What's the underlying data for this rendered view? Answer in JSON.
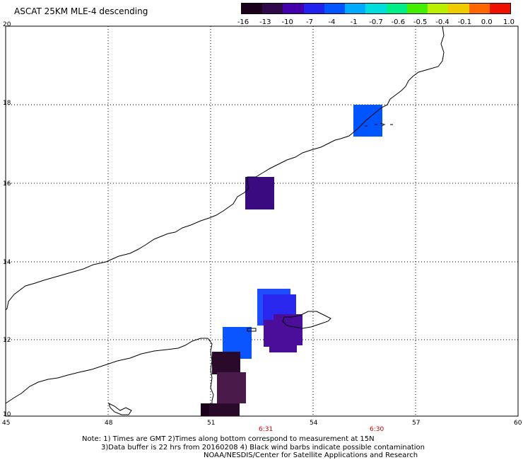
{
  "title": "ASCAT 25KM MLE-4 descending",
  "colorbar": {
    "labels": [
      "-16",
      "-13",
      "-10",
      "-7",
      "-4",
      "-1",
      "-0.7",
      "-0.6",
      "-0.5",
      "-0.4",
      "-0.1",
      "0.0",
      "1.0"
    ],
    "colors": [
      "#1a001a",
      "#2e0a4a",
      "#4400aa",
      "#2222ee",
      "#0055ff",
      "#00aaff",
      "#00dddd",
      "#00ee88",
      "#44ee00",
      "#bbee00",
      "#eecc00",
      "#ff6600",
      "#ee1100"
    ]
  },
  "map": {
    "lat_labels": [
      "20",
      "18",
      "16",
      "14",
      "12",
      "10"
    ],
    "lon_labels": [
      "45",
      "48",
      "51",
      "54",
      "57",
      "60"
    ],
    "time_labels": [
      "6:31",
      "6:30"
    ]
  },
  "notes": {
    "line1": "Note: 1) Times are GMT 2)Times along bottom correspond to measurement at 15N",
    "line2": "3)Data buffer is 22 hrs from 20160208 4) Black wind barbs indicate possible contamination",
    "line3": "NOAA/NESDIS/Center for Satellite Applications and Research"
  }
}
